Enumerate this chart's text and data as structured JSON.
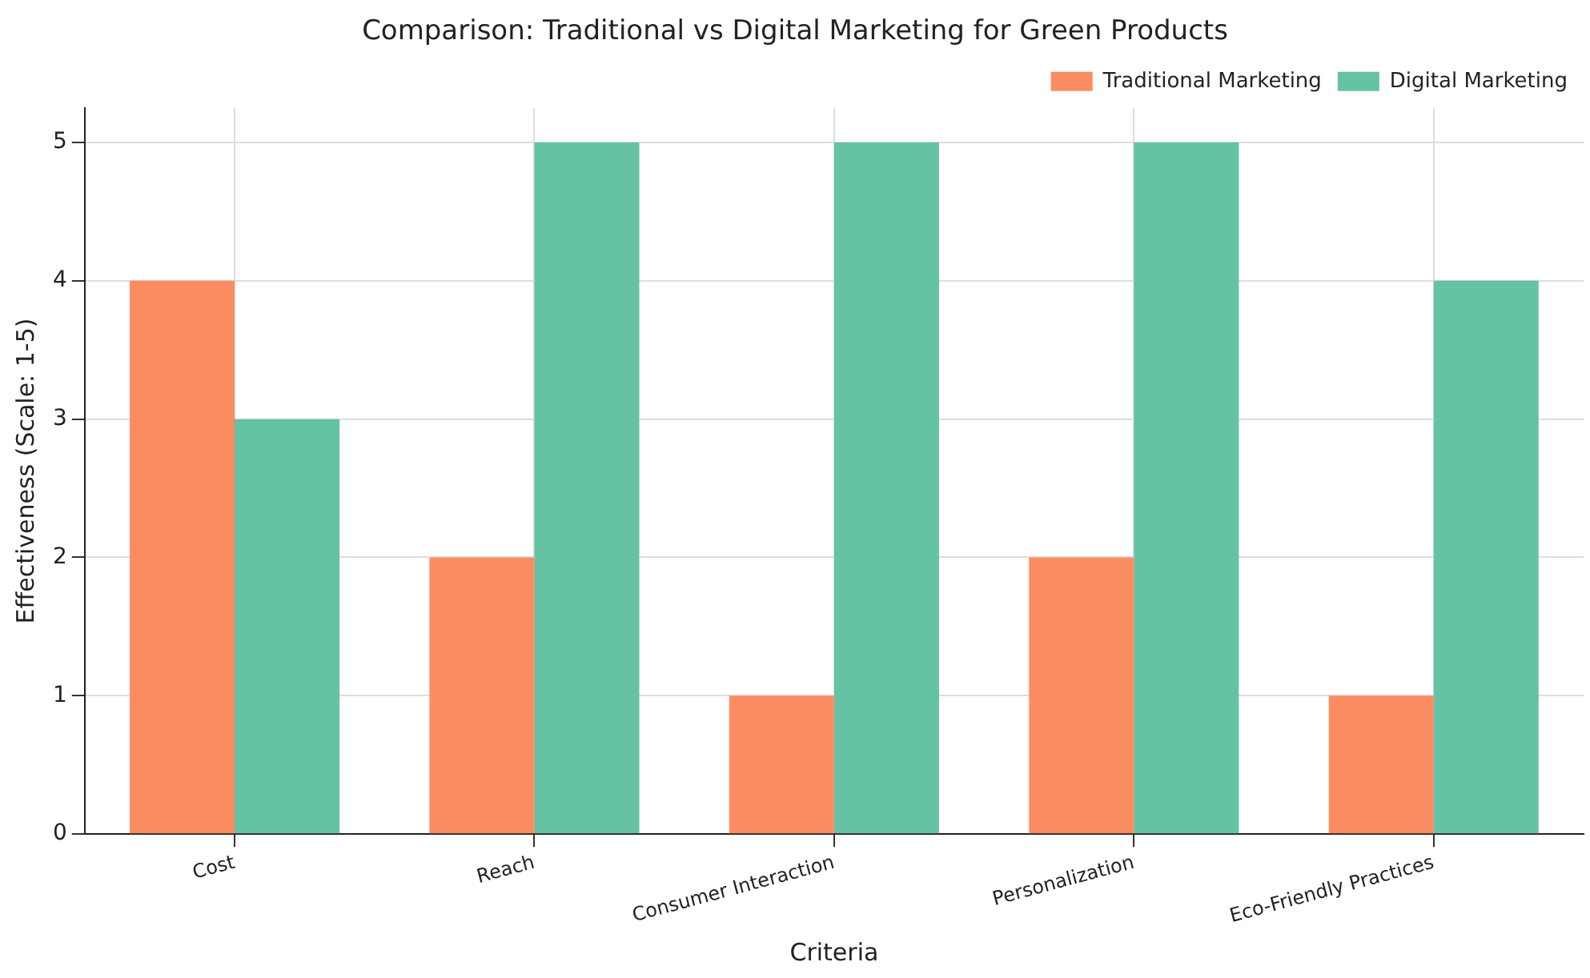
{
  "chart_data": {
    "type": "bar",
    "title": "Comparison: Traditional vs Digital Marketing for Green Products",
    "xlabel": "Criteria",
    "ylabel": "Effectiveness (Scale: 1-5)",
    "categories": [
      "Cost",
      "Reach",
      "Consumer Interaction",
      "Personalization",
      "Eco-Friendly Practices"
    ],
    "series": [
      {
        "name": "Traditional Marketing",
        "color": "#fc8d62",
        "values": [
          4,
          2,
          1,
          2,
          1
        ]
      },
      {
        "name": "Digital Marketing",
        "color": "#66c2a5",
        "values": [
          3,
          5,
          5,
          5,
          4
        ]
      }
    ],
    "ylim": [
      0,
      5.25
    ],
    "yticks": [
      0,
      1,
      2,
      3,
      4,
      5
    ],
    "grid": true,
    "legend": "top right"
  }
}
